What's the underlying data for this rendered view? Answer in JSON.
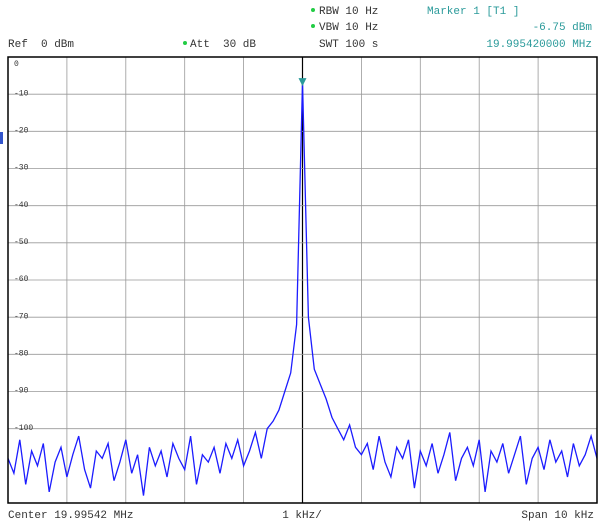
{
  "chart_data": {
    "type": "line",
    "header": {
      "rbw": "RBW 10 Hz",
      "vbw": "VBW 10 Hz",
      "ref": "Ref  0 dBm",
      "att": "Att  30 dB",
      "swt": "SWT 100 s"
    },
    "marker": {
      "label": "Marker 1 [T1 ]",
      "level": {
        "value": -6.75,
        "label": "-6.75 dBm"
      },
      "frequency": "19.995420000 MHz",
      "color": "#2a9a9a"
    },
    "footer": {
      "center": "Center 19.99542 MHz",
      "division": "1 kHz/",
      "span": "Span 10 kHz"
    },
    "series": [
      {
        "color": "#1c1cff",
        "values": [
          -108,
          -112,
          -103,
          -115,
          -106,
          -110,
          -104,
          -117,
          -109,
          -105,
          -113,
          -107,
          -102,
          -111,
          -116,
          -106,
          -108,
          -104,
          -114,
          -109,
          -103,
          -112,
          -107,
          -118,
          -105,
          -110,
          -106,
          -113,
          -104,
          -108,
          -111,
          -102,
          -115,
          -107,
          -109,
          -105,
          -112,
          -104,
          -108,
          -103,
          -110,
          -106,
          -101,
          -108,
          -100,
          -98,
          -95,
          -90,
          -85,
          -72,
          -6.75,
          -70,
          -84,
          -88,
          -92,
          -97,
          -100,
          -103,
          -99,
          -105,
          -107,
          -104,
          -111,
          -102,
          -109,
          -113,
          -105,
          -108,
          -103,
          -116,
          -106,
          -110,
          -104,
          -112,
          -107,
          -101,
          -114,
          -108,
          -105,
          -110,
          -103,
          -117,
          -106,
          -109,
          -104,
          -112,
          -107,
          -102,
          -115,
          -108,
          -105,
          -111,
          -103,
          -109,
          -106,
          -113,
          -104,
          -110,
          -107,
          -102,
          -108
        ]
      }
    ],
    "ylim": [
      -120,
      0
    ],
    "yticks": [
      0,
      -10,
      -20,
      -30,
      -40,
      -50,
      -60,
      -70,
      -80,
      -90,
      -100
    ],
    "grid": true
  }
}
